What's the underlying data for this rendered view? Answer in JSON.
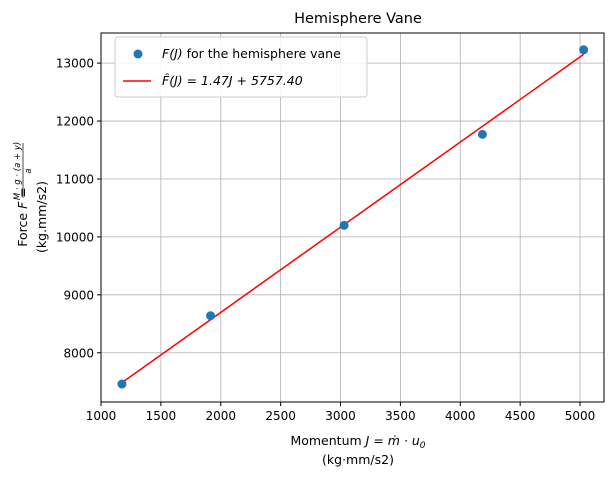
{
  "chart_data": {
    "type": "scatter",
    "title": "Hemisphere Vane",
    "xlabel_line1_prefix": "Momentum ",
    "xlabel_line1_math": "J = ṁ · u",
    "xlabel_line1_sub": "0",
    "xlabel_line2": "(kg·mm/s2)",
    "ylabel_line1_prefix": "Force ",
    "ylabel_line1_math": "F =",
    "ylabel_fraction_num": "M · g · (a + y)",
    "ylabel_fraction_den": "a",
    "ylabel_line2": "(kg.mm/s2)",
    "xlim": [
      1000,
      5200
    ],
    "ylim": [
      7150,
      13520
    ],
    "xticks": [
      1000,
      1500,
      2000,
      2500,
      3000,
      3500,
      4000,
      4500,
      5000
    ],
    "yticks": [
      8000,
      9000,
      10000,
      11000,
      12000,
      13000
    ],
    "grid": true,
    "legend_position": "top-left",
    "series": [
      {
        "name": "F(J) for the hemisphere vane",
        "kind": "scatter",
        "color": "#1f77b4",
        "x": [
          1175,
          1915,
          3030,
          4185,
          5030
        ],
        "y": [
          7460,
          8640,
          10200,
          11770,
          13230
        ]
      },
      {
        "name": "F̂(J) = 1.47J + 5757.40",
        "kind": "line",
        "color": "#ff0000",
        "x": [
          1175,
          5030
        ],
        "y": [
          7484.65,
          13151.5
        ]
      }
    ],
    "legend": {
      "scatter_label_math": "F(J)",
      "scatter_label_rest": " for the hemisphere vane",
      "line_label_math": "F̂(J) = 1.47J + 5757.40"
    }
  }
}
